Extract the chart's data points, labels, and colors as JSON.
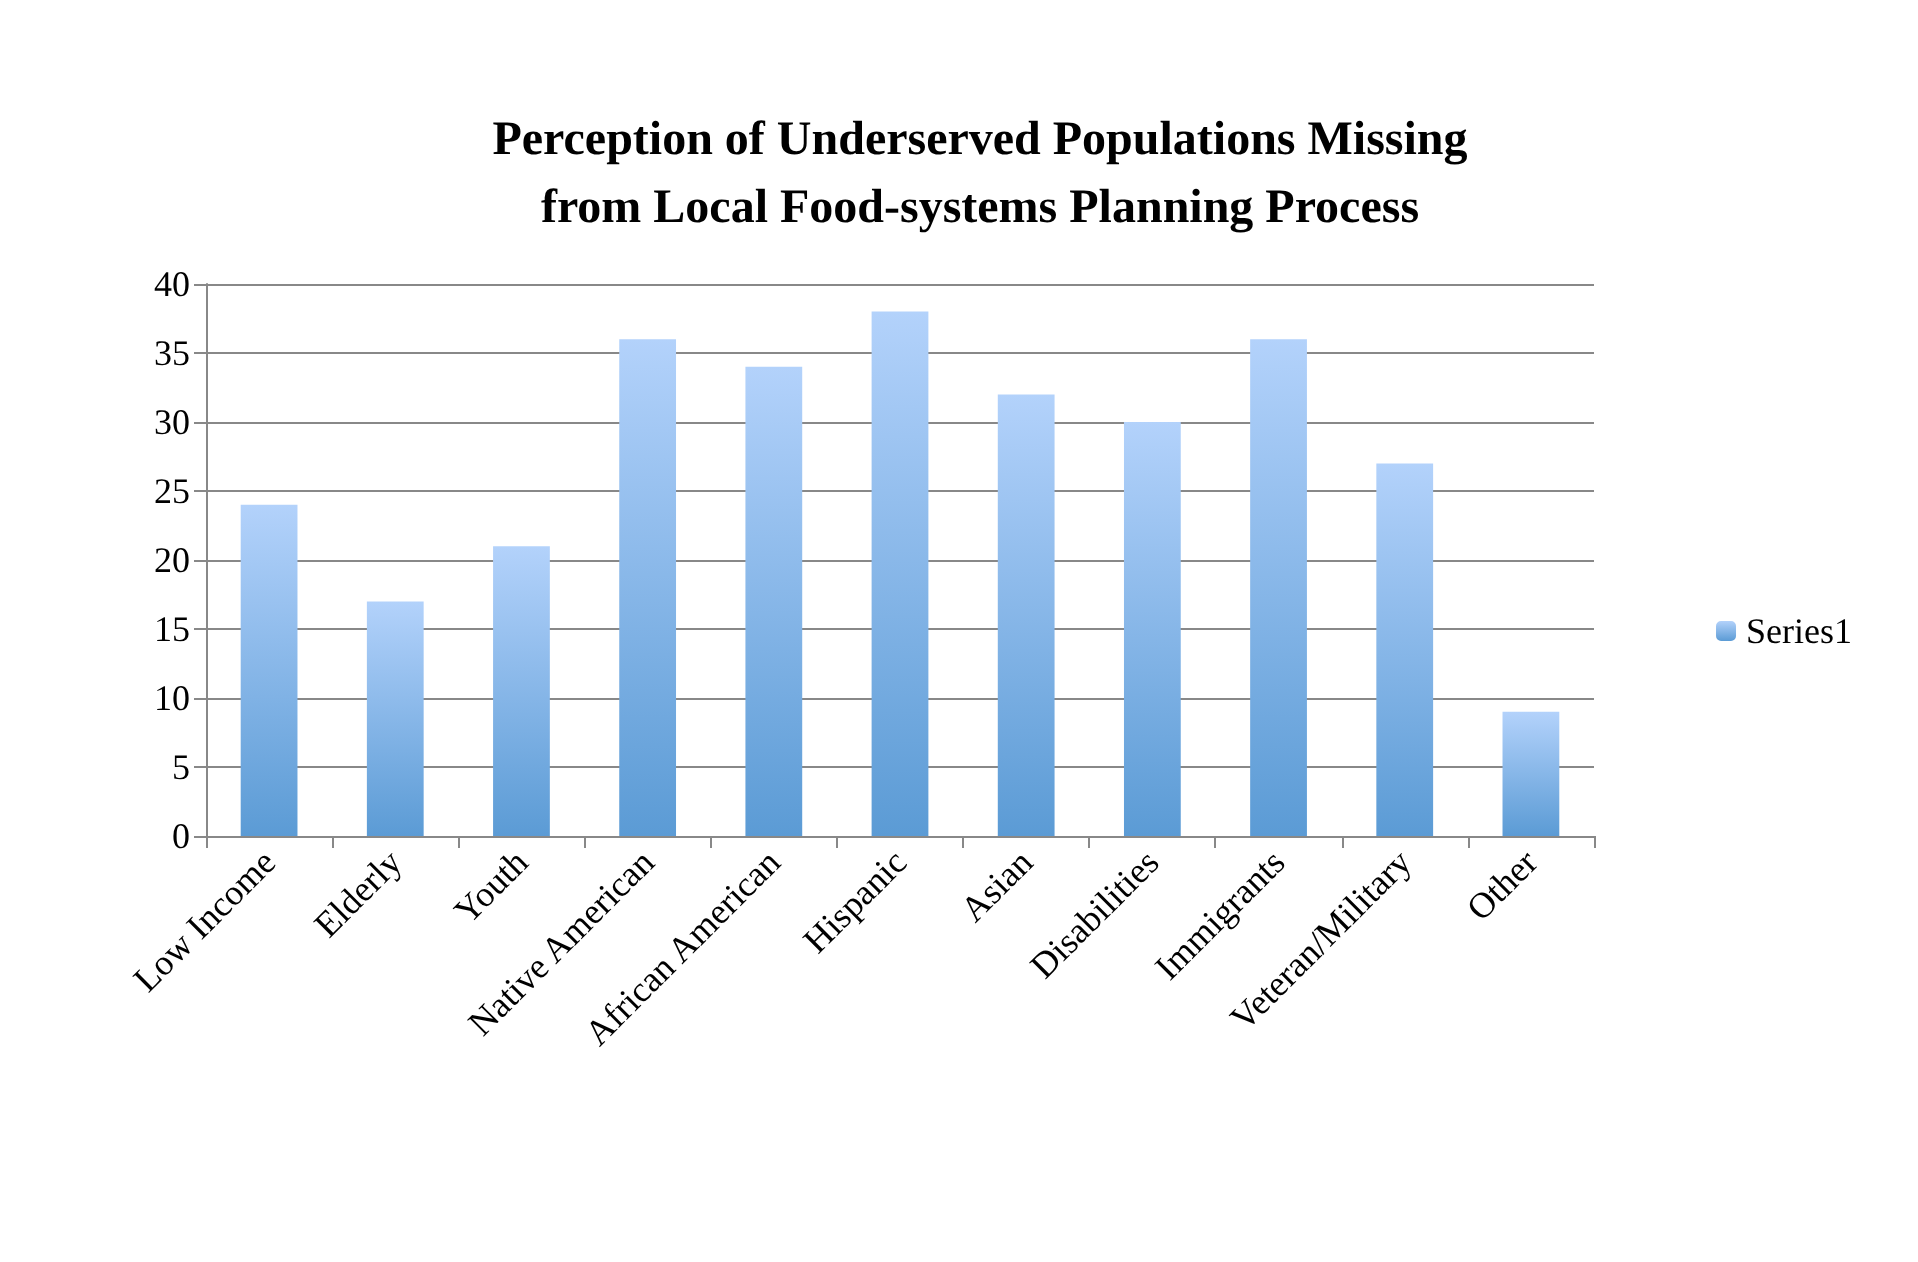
{
  "chart_data": {
    "type": "bar",
    "title": "Perception of Underserved Populations Missing\nfrom Local Food-systems Planning Process",
    "categories": [
      "Low Income",
      "Elderly",
      "Youth",
      "Native American",
      "African American",
      "Hispanic",
      "Asian",
      "Disabilities",
      "Immigrants",
      "Veteran/Military",
      "Other"
    ],
    "series": [
      {
        "name": "Series1",
        "color": "#5b9bd5",
        "values": [
          24,
          17,
          21,
          36,
          34,
          38,
          32,
          30,
          36,
          27,
          9
        ]
      }
    ],
    "ylim": [
      0,
      40
    ],
    "yticks": [
      0,
      5,
      10,
      15,
      20,
      25,
      30,
      35,
      40
    ],
    "grid": "y",
    "legend": "right"
  }
}
